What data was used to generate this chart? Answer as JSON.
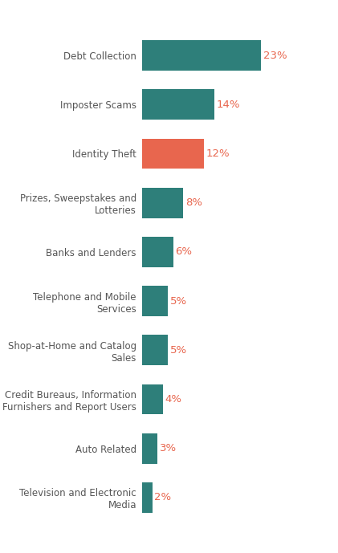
{
  "categories": [
    "Television and Electronic\nMedia",
    "Auto Related",
    "Credit Bureaus, Information\nFurnishers and Report Users",
    "Shop-at-Home and Catalog\nSales",
    "Telephone and Mobile\nServices",
    "Banks and Lenders",
    "Prizes, Sweepstakes and\nLotteries",
    "Identity Theft",
    "Imposter Scams",
    "Debt Collection"
  ],
  "values": [
    2,
    3,
    4,
    5,
    5,
    6,
    8,
    12,
    14,
    23
  ],
  "bar_colors": [
    "#2e7f7a",
    "#2e7f7a",
    "#2e7f7a",
    "#2e7f7a",
    "#2e7f7a",
    "#2e7f7a",
    "#2e7f7a",
    "#e8664e",
    "#2e7f7a",
    "#2e7f7a"
  ],
  "label_color": "#555555",
  "value_color": "#e8664e",
  "background_color": "#ffffff",
  "bar_height": 0.62,
  "xlim": [
    0,
    30
  ],
  "figsize": [
    4.21,
    6.89
  ],
  "dpi": 100,
  "label_fontsize": 8.5,
  "value_fontsize": 9.5
}
